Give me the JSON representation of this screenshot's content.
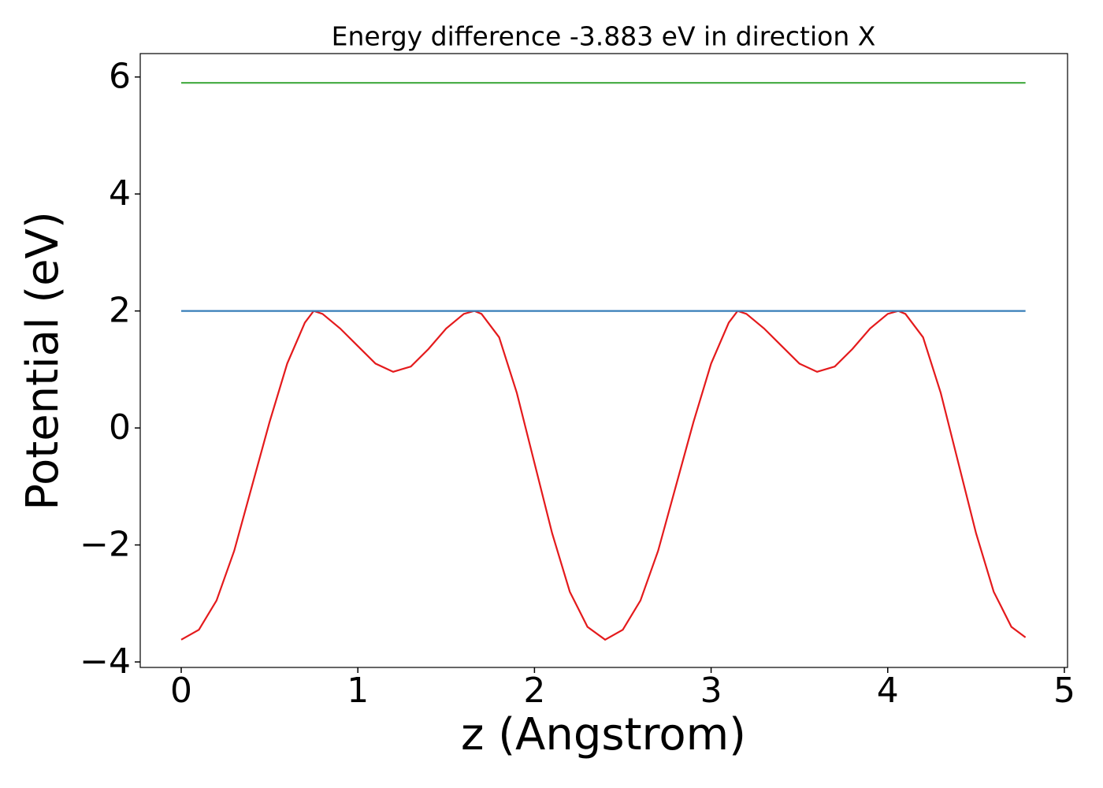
{
  "chart_data": {
    "type": "line",
    "title": "Energy difference -3.883 eV in direction X",
    "xlabel": "z (Angstrom)",
    "ylabel": "Potential (eV)",
    "series": [
      {
        "color": "#e41a1c",
        "x": [
          0,
          0.1,
          0.2,
          0.3,
          0.4,
          0.5,
          0.6,
          0.7,
          0.75,
          0.8,
          0.9,
          1.0,
          1.1,
          1.2,
          1.3,
          1.4,
          1.5,
          1.6,
          1.66,
          1.7,
          1.8,
          1.9,
          2.0,
          2.1,
          2.2,
          2.3,
          2.4,
          2.5,
          2.6,
          2.7,
          2.8,
          2.9,
          3.0,
          3.1,
          3.15,
          3.2,
          3.3,
          3.4,
          3.5,
          3.6,
          3.7,
          3.8,
          3.9,
          4.0,
          4.06,
          4.1,
          4.2,
          4.3,
          4.4,
          4.5,
          4.6,
          4.7,
          4.78
        ],
        "values": [
          -3.62,
          -3.45,
          -2.95,
          -2.1,
          -1.0,
          0.1,
          1.1,
          1.8,
          2.0,
          1.95,
          1.7,
          1.4,
          1.1,
          0.96,
          1.05,
          1.35,
          1.7,
          1.95,
          2.0,
          1.95,
          1.55,
          0.6,
          -0.6,
          -1.8,
          -2.8,
          -3.4,
          -3.62,
          -3.45,
          -2.95,
          -2.1,
          -1.0,
          0.1,
          1.1,
          1.8,
          2.0,
          1.95,
          1.7,
          1.4,
          1.1,
          0.96,
          1.05,
          1.35,
          1.7,
          1.95,
          2.0,
          1.95,
          1.55,
          0.6,
          -0.6,
          -1.8,
          -2.8,
          -3.4,
          -3.58
        ]
      },
      {
        "color": "#377eb8",
        "x": [
          0,
          4.78
        ],
        "values": [
          2.0,
          2.0
        ]
      },
      {
        "color": "#4daf4a",
        "x": [
          0,
          4.78
        ],
        "values": [
          5.9,
          5.9
        ]
      }
    ],
    "xlim": [
      -0.232,
      5.018
    ],
    "ylim": [
      -4.094,
      6.4
    ],
    "xticks": [
      0,
      1,
      2,
      3,
      4,
      5
    ],
    "yticks": [
      {
        "value": -4,
        "label": "−4"
      },
      {
        "value": -2,
        "label": "−2"
      },
      0,
      2,
      4,
      6
    ]
  }
}
